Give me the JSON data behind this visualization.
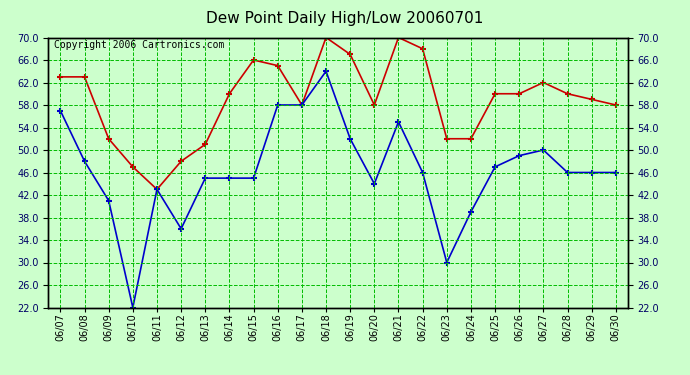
{
  "title": "Dew Point Daily High/Low 20060701",
  "copyright": "Copyright 2006 Cartronics.com",
  "dates": [
    "06/07",
    "06/08",
    "06/09",
    "06/10",
    "06/11",
    "06/12",
    "06/13",
    "06/14",
    "06/15",
    "06/16",
    "06/17",
    "06/18",
    "06/19",
    "06/20",
    "06/21",
    "06/22",
    "06/23",
    "06/24",
    "06/25",
    "06/26",
    "06/27",
    "06/28",
    "06/29",
    "06/30"
  ],
  "high": [
    63,
    63,
    52,
    47,
    43,
    48,
    51,
    60,
    66,
    65,
    58,
    70,
    67,
    58,
    70,
    68,
    52,
    52,
    60,
    60,
    62,
    60,
    59,
    58
  ],
  "low": [
    57,
    48,
    41,
    22,
    43,
    36,
    45,
    45,
    45,
    58,
    58,
    64,
    52,
    44,
    55,
    46,
    30,
    39,
    47,
    49,
    50,
    46,
    46,
    46
  ],
  "high_color": "#cc0000",
  "low_color": "#0000cc",
  "bg_color": "#ccffcc",
  "grid_color": "#00bb00",
  "border_color": "#000000",
  "ylim_min": 22.0,
  "ylim_max": 70.0,
  "ytick_step": 4.0,
  "title_fontsize": 11,
  "tick_fontsize": 7,
  "copyright_fontsize": 7
}
